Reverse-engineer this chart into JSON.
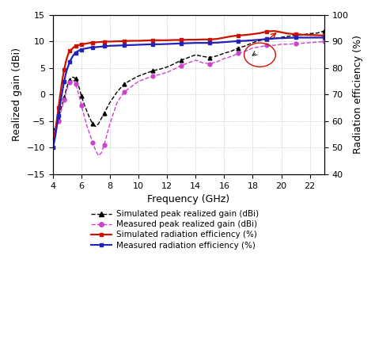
{
  "freq": [
    4.0,
    4.1,
    4.2,
    4.3,
    4.4,
    4.5,
    4.6,
    4.7,
    4.8,
    4.9,
    5.0,
    5.1,
    5.2,
    5.3,
    5.4,
    5.5,
    5.6,
    5.7,
    5.8,
    5.9,
    6.0,
    6.2,
    6.4,
    6.6,
    6.8,
    7.0,
    7.2,
    7.4,
    7.6,
    7.8,
    8.0,
    8.5,
    9.0,
    9.5,
    10.0,
    10.5,
    11.0,
    11.5,
    12.0,
    12.5,
    13.0,
    13.5,
    14.0,
    14.5,
    15.0,
    15.5,
    16.0,
    16.5,
    17.0,
    17.5,
    18.0,
    18.5,
    19.0,
    19.5,
    20.0,
    20.5,
    21.0,
    21.5,
    22.0,
    22.5,
    23.0
  ],
  "sim_gain": [
    -7.0,
    -6.5,
    -6.0,
    -5.2,
    -4.5,
    -3.5,
    -2.5,
    -1.5,
    -0.5,
    0.5,
    1.5,
    2.2,
    2.8,
    3.1,
    3.3,
    3.2,
    3.0,
    2.5,
    1.8,
    0.8,
    -0.2,
    -1.8,
    -3.2,
    -4.5,
    -5.5,
    -6.0,
    -5.5,
    -4.5,
    -3.5,
    -2.5,
    -1.5,
    0.5,
    2.0,
    2.8,
    3.5,
    4.0,
    4.5,
    4.8,
    5.2,
    5.8,
    6.5,
    7.0,
    7.5,
    7.2,
    7.0,
    7.3,
    7.8,
    8.2,
    8.8,
    9.2,
    9.8,
    10.2,
    10.5,
    10.5,
    10.8,
    11.0,
    11.2,
    11.3,
    11.5,
    11.6,
    12.0
  ],
  "meas_gain": [
    -7.5,
    -7.0,
    -6.5,
    -5.8,
    -5.0,
    -4.0,
    -3.0,
    -2.0,
    -1.0,
    0.0,
    1.0,
    1.8,
    2.3,
    2.6,
    2.7,
    2.5,
    2.0,
    1.2,
    0.2,
    -0.8,
    -2.0,
    -4.0,
    -6.0,
    -7.5,
    -9.0,
    -10.5,
    -11.5,
    -11.0,
    -9.5,
    -7.5,
    -5.5,
    -1.5,
    0.5,
    1.5,
    2.5,
    3.0,
    3.5,
    3.8,
    4.2,
    4.8,
    5.5,
    6.0,
    6.5,
    6.0,
    5.8,
    6.2,
    6.8,
    7.2,
    7.8,
    8.2,
    8.8,
    9.0,
    9.3,
    9.3,
    9.5,
    9.5,
    9.6,
    9.7,
    9.8,
    9.9,
    10.0
  ],
  "sim_eff": [
    50.0,
    53.0,
    57.0,
    61.0,
    65.0,
    69.0,
    73.0,
    76.5,
    79.5,
    82.0,
    84.0,
    85.5,
    86.5,
    87.0,
    87.5,
    88.0,
    88.3,
    88.5,
    88.7,
    88.8,
    88.9,
    89.1,
    89.3,
    89.5,
    89.6,
    89.7,
    89.8,
    89.9,
    89.9,
    90.0,
    90.0,
    90.1,
    90.2,
    90.3,
    90.3,
    90.4,
    90.5,
    90.5,
    90.5,
    90.6,
    90.6,
    90.7,
    90.7,
    90.8,
    90.8,
    91.0,
    91.5,
    92.0,
    92.3,
    92.5,
    92.8,
    93.2,
    93.8,
    94.0,
    93.5,
    93.0,
    92.8,
    92.6,
    92.5,
    92.4,
    92.3
  ],
  "meas_eff": [
    50.0,
    52.0,
    55.0,
    58.5,
    62.0,
    65.5,
    69.0,
    72.0,
    75.0,
    77.5,
    79.5,
    81.0,
    82.5,
    83.5,
    84.5,
    85.2,
    85.8,
    86.2,
    86.5,
    86.8,
    87.0,
    87.3,
    87.5,
    87.7,
    87.8,
    87.9,
    88.0,
    88.1,
    88.2,
    88.3,
    88.4,
    88.5,
    88.6,
    88.7,
    88.8,
    88.9,
    89.0,
    89.0,
    89.1,
    89.2,
    89.3,
    89.4,
    89.5,
    89.5,
    89.5,
    89.6,
    89.8,
    90.0,
    90.2,
    90.3,
    90.5,
    90.7,
    91.0,
    91.2,
    91.3,
    91.4,
    91.5,
    91.5,
    91.5,
    91.5,
    91.5
  ],
  "xlim": [
    4,
    23
  ],
  "ylim_left": [
    -15,
    15
  ],
  "ylim_right": [
    40,
    100
  ],
  "xticks": [
    4,
    6,
    8,
    10,
    12,
    14,
    16,
    18,
    20,
    22
  ],
  "yticks_left": [
    -15,
    -10,
    -5,
    0,
    5,
    10,
    15
  ],
  "yticks_right": [
    40,
    50,
    60,
    70,
    80,
    90,
    100
  ],
  "xlabel": "Frequency (GHz)",
  "ylabel_left": "Realized gain (dBi)",
  "ylabel_right": "Radiation efficiency (%)",
  "sim_gain_color": "#000000",
  "meas_gain_color": "#cc44cc",
  "sim_eff_color": "#cc1100",
  "meas_eff_color": "#2222bb",
  "legend_labels": [
    "Simulated peak realized gain (dBi)",
    "Measured peak realized gain (dBi)",
    "Simulated radiation efficiency (%)",
    "Measured radiation efficiency (%)"
  ],
  "grid_color": "#bbbbbb",
  "background_color": "#ffffff"
}
